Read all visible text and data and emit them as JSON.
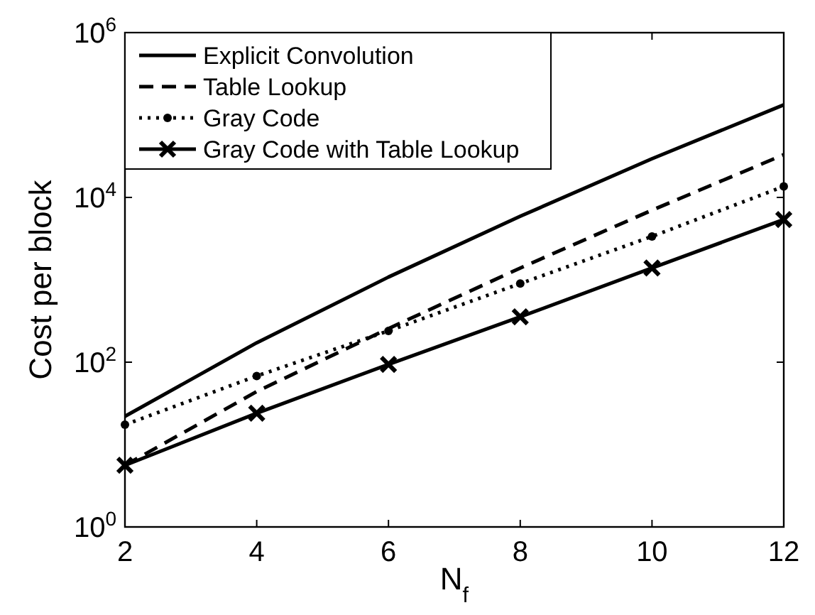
{
  "chart_data": {
    "type": "line",
    "xlabel": "N$_{f}$",
    "ylabel": "Cost per block",
    "x": [
      2,
      4,
      6,
      8,
      10,
      12
    ],
    "log": true,
    "xlim": [
      2,
      12
    ],
    "xticks": [
      2,
      4,
      6,
      8,
      10,
      12
    ],
    "ylim": [
      1,
      1000000
    ],
    "yticks": [
      {
        "value": 1,
        "label": "10$^{0}$"
      },
      {
        "value": 100,
        "label": "10$^{2}$"
      },
      {
        "value": 10000,
        "label": "10$^{4}$"
      },
      {
        "value": 1000000,
        "label": "10$^{6}$"
      }
    ],
    "grid": false,
    "legend": "top left",
    "series": [
      {
        "name": "Explicit Convolution",
        "color": "#000000",
        "line_style": "solid",
        "marker": "none",
        "values": [
          22,
          172,
          1080,
          5900,
          29500,
          133000
        ]
      },
      {
        "name": "Table Lookup",
        "color": "#000000",
        "line_style": "dashed",
        "marker": "none",
        "values": [
          5.6,
          44,
          256,
          1390,
          7000,
          33000
        ]
      },
      {
        "name": "Gray Code",
        "color": "#000000",
        "line_style": "dotted",
        "marker": "circle",
        "values": [
          17.4,
          68,
          240,
          900,
          3360,
          13600
        ]
      },
      {
        "name": "Gray Code with Table Lookup",
        "color": "#000000",
        "line_style": "solid",
        "marker": "cross",
        "values": [
          5.6,
          24,
          94,
          355,
          1390,
          5400
        ]
      }
    ]
  }
}
